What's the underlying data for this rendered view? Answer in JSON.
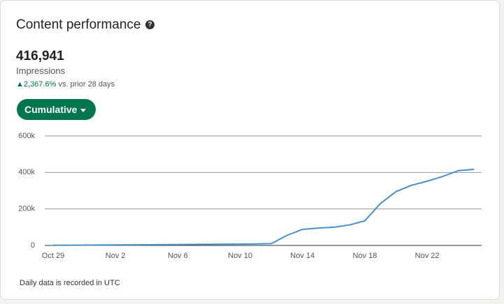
{
  "header": {
    "title": "Content performance"
  },
  "metric": {
    "value": "416,941",
    "label": "Impressions",
    "change": "2,367.6%",
    "comparison": "vs. prior 28 days"
  },
  "button": {
    "label": "Cumulative"
  },
  "chart_data": {
    "type": "line",
    "categories": [
      "Oct 29",
      null,
      null,
      null,
      "Nov 2",
      null,
      null,
      null,
      "Nov 6",
      null,
      null,
      null,
      "Nov 10",
      null,
      null,
      null,
      "Nov 14",
      null,
      null,
      null,
      "Nov 18",
      null,
      null,
      null,
      "Nov 22",
      null,
      null,
      null
    ],
    "values": [
      1000,
      1500,
      2000,
      2500,
      3000,
      3500,
      4000,
      4500,
      5000,
      5500,
      6000,
      6500,
      7000,
      8000,
      10000,
      55000,
      88000,
      95000,
      100000,
      112000,
      135000,
      230000,
      295000,
      330000,
      352000,
      378000,
      410000,
      416941
    ],
    "color": "#4a90c8",
    "ylim": [
      0,
      600000
    ],
    "yticks": [
      0,
      {
        "value": 200000,
        "label": "200k"
      },
      {
        "value": 400000,
        "label": "400k"
      },
      {
        "value": 600000,
        "label": "600k"
      }
    ],
    "grid": true
  },
  "footer": {
    "note": "Daily data is recorded in UTC"
  }
}
